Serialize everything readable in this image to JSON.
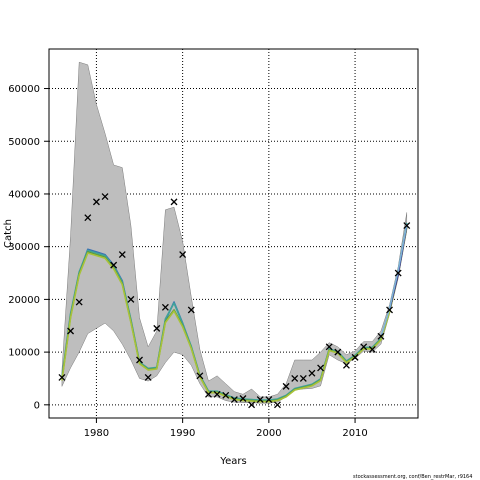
{
  "chart_data": {
    "type": "line",
    "title": "",
    "xlabel": "Years",
    "ylabel": "Catch",
    "xlim": [
      1974.5,
      2017.3
    ],
    "ylim": [
      -2500,
      67500
    ],
    "xticks": [
      1980,
      1990,
      2000,
      2010
    ],
    "yticks": [
      0,
      10000,
      20000,
      30000,
      40000,
      50000,
      60000
    ],
    "grid": true,
    "band": {
      "x": [
        1976,
        1977,
        1978,
        1979,
        1980,
        1981,
        1982,
        1983,
        1984,
        1985,
        1986,
        1987,
        1988,
        1989,
        1990,
        1991,
        1992,
        1993,
        1994,
        1995,
        1996,
        1997,
        1998,
        1999,
        2000,
        2001,
        2002,
        2003,
        2004,
        2005,
        2006,
        2007,
        2008,
        2009,
        2010,
        2011,
        2012,
        2013,
        2014,
        2015,
        2016
      ],
      "lower": [
        3500,
        7000,
        10000,
        13500,
        14500,
        15500,
        14000,
        11500,
        8500,
        5000,
        4500,
        5500,
        8000,
        10000,
        9500,
        7500,
        4000,
        1500,
        1500,
        800,
        500,
        400,
        400,
        300,
        300,
        500,
        1500,
        2800,
        3000,
        3100,
        3600,
        9500,
        8500,
        7800,
        8800,
        10200,
        10000,
        11500,
        17200,
        24000,
        33000
      ],
      "upper": [
        6500,
        32000,
        65000,
        64500,
        57000,
        51500,
        45500,
        45000,
        34000,
        16500,
        11000,
        14000,
        37000,
        37500,
        31000,
        20500,
        10500,
        4500,
        5500,
        4000,
        2500,
        2000,
        3000,
        1500,
        1500,
        2000,
        4000,
        8500,
        8500,
        8500,
        10000,
        11800,
        11000,
        9500,
        10200,
        12000,
        12000,
        14000,
        19000,
        26200,
        36500
      ]
    },
    "series": [
      {
        "color": "#3a6fb5",
        "values": [
          5000,
          17000,
          25000,
          29500,
          29000,
          28500,
          26500,
          23500,
          16000,
          8000,
          6800,
          7000,
          16000,
          19500,
          15500,
          11000,
          5500,
          2500,
          2500,
          1800,
          1200,
          1000,
          900,
          800,
          800,
          1000,
          1700,
          3000,
          3400,
          3800,
          4800,
          10500,
          10000,
          8200,
          9300,
          10800,
          10800,
          12500,
          17800,
          25000,
          34000
        ]
      },
      {
        "color": "#3fa39a",
        "values": [
          5200,
          17300,
          25200,
          29300,
          28800,
          28300,
          26300,
          23300,
          16200,
          8100,
          6900,
          7100,
          16300,
          19300,
          15400,
          11100,
          5600,
          2600,
          2600,
          1900,
          1300,
          1100,
          1000,
          900,
          900,
          1100,
          1800,
          3100,
          3500,
          3900,
          4900,
          10600,
          10100,
          8300,
          9400,
          10900,
          10900,
          12600,
          18000,
          25200,
          34500
        ]
      },
      {
        "color": "#5a9a3a",
        "values": [
          4800,
          16700,
          24800,
          29000,
          28500,
          28000,
          26000,
          23000,
          15800,
          7900,
          6700,
          6900,
          15800,
          18000,
          15000,
          10800,
          5400,
          2400,
          2400,
          1700,
          1100,
          900,
          800,
          700,
          700,
          900,
          1600,
          2900,
          3300,
          3700,
          4700,
          10400,
          9900,
          8100,
          9200,
          10700,
          10700,
          12400,
          17700,
          24900,
          33800
        ]
      },
      {
        "color": "#a8c23a",
        "values": [
          4600,
          16500,
          24600,
          28800,
          28300,
          27800,
          25800,
          22800,
          15600,
          7800,
          6600,
          6800,
          15600,
          17800,
          14800,
          10700,
          5300,
          2300,
          2300,
          1600,
          1000,
          800,
          700,
          600,
          600,
          800,
          1500,
          2800,
          3200,
          3600,
          4600,
          10300,
          9800,
          8000,
          9100,
          10600,
          10600,
          12300,
          17600,
          24800,
          33700
        ]
      },
      {
        "color": "#2a1f8f",
        "values": [
          null,
          null,
          null,
          null,
          null,
          null,
          null,
          null,
          null,
          null,
          null,
          null,
          null,
          null,
          null,
          null,
          null,
          null,
          null,
          null,
          null,
          null,
          null,
          null,
          null,
          null,
          null,
          null,
          null,
          null,
          null,
          null,
          null,
          null,
          null,
          null,
          null,
          null,
          18000,
          24800,
          34000
        ]
      },
      {
        "color": "#7fb3d5",
        "values": [
          null,
          null,
          null,
          null,
          null,
          null,
          null,
          null,
          null,
          null,
          null,
          null,
          null,
          null,
          null,
          null,
          null,
          null,
          null,
          null,
          null,
          null,
          null,
          null,
          null,
          null,
          null,
          null,
          null,
          null,
          null,
          null,
          null,
          null,
          null,
          null,
          null,
          12800,
          18300,
          25400,
          34300
        ]
      }
    ],
    "observed": {
      "x": [
        1976,
        1977,
        1978,
        1979,
        1980,
        1981,
        1982,
        1983,
        1984,
        1985,
        1986,
        1987,
        1988,
        1989,
        1990,
        1991,
        1992,
        1993,
        1994,
        1995,
        1996,
        1997,
        1998,
        1999,
        2000,
        2001,
        2002,
        2003,
        2004,
        2005,
        2006,
        2007,
        2008,
        2009,
        2010,
        2011,
        2012,
        2013,
        2014,
        2015,
        2016
      ],
      "y": [
        5200,
        14000,
        19500,
        35500,
        38500,
        39500,
        26500,
        28500,
        20000,
        8500,
        5200,
        14500,
        18500,
        38500,
        28500,
        18000,
        5500,
        2000,
        2000,
        1800,
        1000,
        1200,
        0,
        1000,
        1000,
        0,
        3500,
        5000,
        5000,
        6000,
        7000,
        11000,
        10000,
        7500,
        9000,
        11000,
        10500,
        13000,
        18000,
        25000,
        34000
      ]
    },
    "colors": {
      "band": "#bebebe",
      "band_edge": "#7a7a7a",
      "grid": "#000000",
      "marker": "#000000"
    }
  },
  "footer": {
    "text": "stockassessment.org, conf/Ben_restrMar, r9164"
  }
}
